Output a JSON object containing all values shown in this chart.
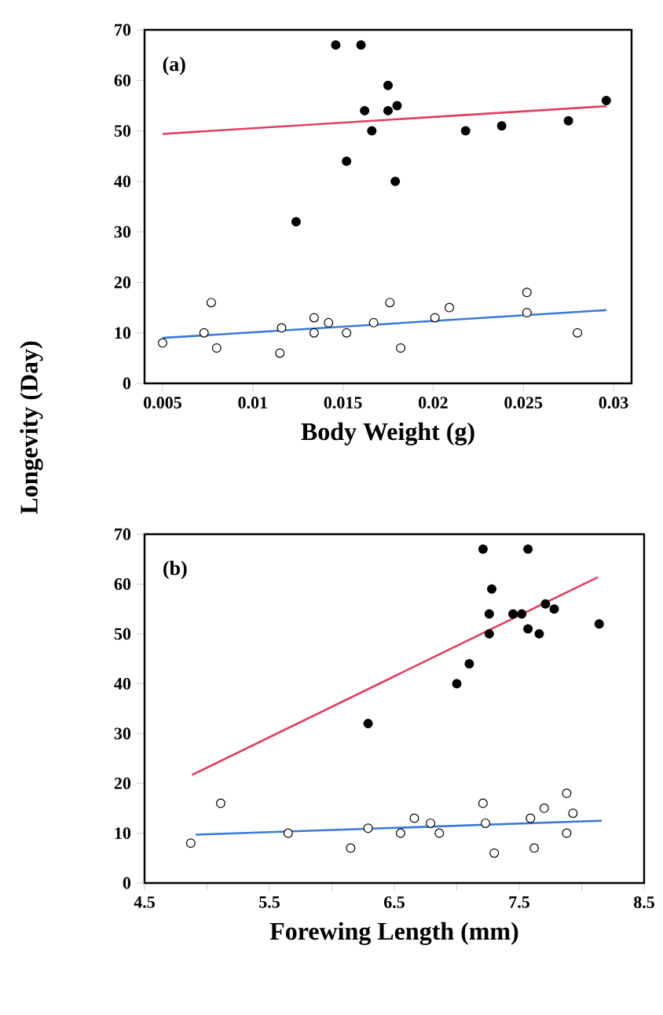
{
  "chart_data": [
    {
      "type": "scatter",
      "ylabel": "Longevity (Day)",
      "xlabel": "Body Weight (g)",
      "annotations": [
        "(a)"
      ],
      "xlim": [
        0.004,
        0.031
      ],
      "ylim": [
        0,
        70
      ],
      "xticks": [
        {
          "value": 0.005,
          "label": "0.005"
        },
        {
          "value": 0.01,
          "label": "0.01"
        },
        {
          "value": 0.015,
          "label": "0.015"
        },
        {
          "value": 0.02,
          "label": "0.02"
        },
        {
          "value": 0.025,
          "label": "0.025"
        },
        {
          "value": 0.03,
          "label": "0.03"
        }
      ],
      "yticks": [
        0,
        10,
        20,
        30,
        40,
        50,
        60,
        70
      ],
      "marker": "circle",
      "series": [
        {
          "color": "#000000",
          "x": [
            0.0146,
            0.016,
            0.0124,
            0.0152,
            0.0162,
            0.0166,
            0.0175,
            0.0175,
            0.018,
            0.0179,
            0.0218,
            0.0238,
            0.0275,
            0.0296
          ],
          "values": [
            67,
            67,
            32,
            44,
            54,
            50,
            59,
            54,
            55,
            40,
            50,
            51,
            52,
            56
          ]
        },
        {
          "color": "#ffffff",
          "x": [
            0.005,
            0.0073,
            0.0077,
            0.008,
            0.0115,
            0.0116,
            0.0134,
            0.0134,
            0.0142,
            0.0152,
            0.0167,
            0.0176,
            0.0182,
            0.0201,
            0.0209,
            0.0252,
            0.0252,
            0.028
          ],
          "values": [
            8,
            10,
            16,
            7,
            6,
            11,
            13,
            10,
            12,
            10,
            12,
            16,
            7,
            13,
            15,
            18,
            14,
            10
          ]
        },
        {
          "type": "line",
          "marker": "none",
          "color": "#e0405e",
          "x": [
            0.005,
            0.0296
          ],
          "values": [
            49.4,
            54.9
          ]
        },
        {
          "type": "line",
          "marker": "none",
          "color": "#3a78d8",
          "x": [
            0.005,
            0.0296
          ],
          "values": [
            9.0,
            14.5
          ]
        }
      ]
    },
    {
      "type": "scatter",
      "xlabel": "Forewing Length (mm)",
      "annotations": [
        "(b)"
      ],
      "xlim": [
        4.5,
        8.5
      ],
      "ylim": [
        0,
        70
      ],
      "xticks": [
        4.5,
        {
          "value": 5,
          "label": null
        },
        5.5,
        {
          "value": 6,
          "label": null
        },
        6.5,
        {
          "value": 7,
          "label": null
        },
        7.5,
        {
          "value": 8,
          "label": null
        },
        8.5
      ],
      "yticks": [
        0,
        10,
        20,
        30,
        40,
        50,
        60,
        70
      ],
      "marker": "circle",
      "series": [
        {
          "color": "#000000",
          "x": [
            6.29,
            7.0,
            7.1,
            7.21,
            7.26,
            7.26,
            7.28,
            7.45,
            7.52,
            7.57,
            7.57,
            7.66,
            7.71,
            7.78,
            8.14
          ],
          "values": [
            32,
            40,
            44,
            67,
            50,
            54,
            59,
            54,
            54,
            67,
            51,
            50,
            56,
            55,
            52
          ]
        },
        {
          "color": "#ffffff",
          "x": [
            4.87,
            5.11,
            5.65,
            6.15,
            6.29,
            6.55,
            6.66,
            6.79,
            6.86,
            7.21,
            7.23,
            7.3,
            7.59,
            7.62,
            7.7,
            7.88,
            7.88,
            7.93
          ],
          "values": [
            8,
            16,
            10,
            7,
            11,
            10,
            13,
            12,
            10,
            16,
            12,
            6,
            13,
            7,
            15,
            18,
            10,
            14
          ]
        },
        {
          "type": "line",
          "marker": "none",
          "color": "#e0405e",
          "x": [
            4.88,
            8.13
          ],
          "values": [
            21.7,
            61.4
          ]
        },
        {
          "type": "line",
          "marker": "none",
          "color": "#3a78d8",
          "x": [
            4.91,
            8.16
          ],
          "values": [
            9.7,
            12.5
          ]
        }
      ]
    }
  ]
}
